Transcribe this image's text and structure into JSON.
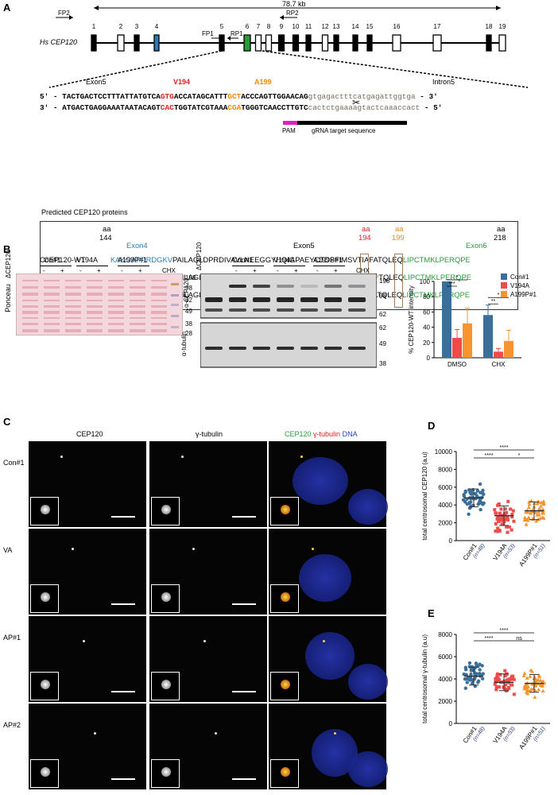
{
  "panels": {
    "A": "A",
    "B": "B",
    "C": "C",
    "D": "D",
    "E": "E"
  },
  "genome": {
    "length": "78.7 kb",
    "gene": "Hs CEP120",
    "exons": [
      "1",
      "2",
      "3",
      "4",
      "5",
      "6",
      "7",
      "8",
      "9",
      "10",
      "11",
      "12",
      "13",
      "14",
      "15",
      "16",
      "17",
      "18",
      "19"
    ],
    "primers": {
      "fp2": "FP2",
      "rp2": "RP2",
      "fp1": "FP1",
      "rp1": "RP1"
    }
  },
  "sequence": {
    "exon5": "Exon5",
    "intron5": "Intron5",
    "v194": "V194",
    "a199": "A199",
    "top_prefix": "5' - ",
    "top_a": "TACTGACTCCTTTATTATGTCA",
    "top_v": "GTG",
    "top_b": "ACCATAGCATTT",
    "top_a199": "GCT",
    "top_c": "ACCCAGTTGGAACAG",
    "top_intron": "gtgagactttcatgagattggtga",
    "top_suffix": " - 3'",
    "bot_prefix": "3' - ",
    "bot_a": "ATGACTGAGGAAATAATACAGT",
    "bot_v": "CAC",
    "bot_b": "TGGTATCGTAAA",
    "bot_a199": "CGA",
    "bot_c": "TGGGTCAACCTTGTC",
    "bot_intron": "cactctgaaaagtactcaaaccact",
    "bot_suffix": " - 5'",
    "pam": "PAM",
    "grna": "gRNA target sequence"
  },
  "proteins": {
    "heading": "Predicted CEP120 proteins",
    "aa": "aa",
    "aa144": "144",
    "aa194": "194",
    "aa199": "199",
    "aa218": "218",
    "exon4": "Exon4",
    "exon5": "Exon5",
    "exon6": "Exon6",
    "rows": [
      {
        "name": "CEP120-WT",
        "e4": "KAKGAPPRDGKV",
        "m1": "PAILAGLDPRDIVAVLNEEGGYHQIGPAEYCTDSFIMS",
        "v": "V",
        "m2": "TIAF",
        "a": "A",
        "m3": "TQLEQ",
        "e6": "LIPCTMKLPERQPE"
      },
      {
        "name": "CEP120-A199P",
        "e4": "KAKGAPPRDGKV",
        "m1": "PAILAGLDPRDIVAVLNEEGGYHQIGPAEYCTDSFIMS",
        "v": "V",
        "m2": "TIAF",
        "a": "P",
        "m3": "TQLEQ",
        "e6": "LIPCTMKLPERQPE"
      },
      {
        "name": "CEP120-V194A",
        "e4": "KAKGAPPRDGKV",
        "m1": "PAILAGLDPRDIVAVLNEEGGYHQIGPAEYCTDSFIMS",
        "v": "A",
        "m2": "TIAF",
        "a": "A",
        "m3": "TQLEQ",
        "e6": "LIPCTMKLPERQPE"
      }
    ]
  },
  "blots": {
    "ponceau_label": "Ponceau",
    "dcep": "ΔCEP120",
    "groups": [
      "Con#1",
      "V194A",
      "A199P#1"
    ],
    "minus": "-",
    "plus": "+",
    "chx": "CHX",
    "ponceau_mw": [
      "198",
      "98",
      "62",
      "49",
      "38",
      "28"
    ],
    "cep_mw": [
      "198",
      "98",
      "62"
    ],
    "tub_mw": [
      "62",
      "49",
      "38"
    ],
    "ab_cep": "α-CEP120",
    "ab_tub": "α-tubulin"
  },
  "chart_data": [
    {
      "type": "bar",
      "ylabel": "% CEP120-WT intensity",
      "ylim": [
        0,
        100
      ],
      "yticks": [
        0,
        20,
        40,
        60,
        80,
        100
      ],
      "categories": [
        "DMSO",
        "CHX"
      ],
      "series": [
        {
          "name": "Con#1",
          "color": "#3b6f99",
          "values": [
            100,
            56
          ],
          "err": [
            0,
            13
          ]
        },
        {
          "name": "V194A",
          "color": "#f04b4b",
          "values": [
            26,
            8
          ],
          "err": [
            11,
            4
          ]
        },
        {
          "name": "A199P#1",
          "color": "#f7942f",
          "values": [
            45,
            22
          ],
          "err": [
            20,
            14
          ]
        }
      ],
      "sig": [
        "***",
        "*",
        "**",
        "*"
      ],
      "legend": "top-right"
    },
    {
      "type": "scatter",
      "ylabel": "total centrosomal CEP120 (a.u)",
      "ylim": [
        0,
        10000
      ],
      "yticks": [
        "0",
        "2000",
        "4000",
        "6000",
        "8000",
        "10000"
      ],
      "categories": [
        "Con#1",
        "V194A",
        "A199P#1"
      ],
      "n": [
        "(n=48)",
        "(n=53)",
        "(n=51)"
      ],
      "means": [
        4800,
        2800,
        3350
      ],
      "sd": [
        1000,
        1100,
        1000
      ],
      "colors": [
        "#3b6f99",
        "#f04b4b",
        "#f7942f"
      ],
      "markers": [
        "circle",
        "square",
        "triangle"
      ],
      "sig": [
        "****",
        "****",
        "*"
      ]
    },
    {
      "type": "scatter",
      "ylabel": "total centrosomal γ-tubulin (a.u)",
      "ylim": [
        0,
        8000
      ],
      "yticks": [
        "0",
        "2000",
        "4000",
        "6000",
        "8000"
      ],
      "categories": [
        "Con#1",
        "V194A",
        "A199P#1"
      ],
      "n": [
        "(n=48)",
        "(n=53)",
        "(n=51)"
      ],
      "means": [
        4250,
        3700,
        3600
      ],
      "sd": [
        800,
        750,
        800
      ],
      "colors": [
        "#3b6f99",
        "#f04b4b",
        "#f7942f"
      ],
      "markers": [
        "circle",
        "square",
        "triangle"
      ],
      "sig": [
        "****",
        "****",
        "ns"
      ]
    }
  ],
  "micro": {
    "col_cep": "CEP120",
    "col_tub": "γ-tubulin",
    "merge_cep": "CEP120",
    "merge_tub": "γ-tubulin",
    "merge_dna": "DNA",
    "rows": [
      "Con#1",
      "VA",
      "AP#1",
      "AP#2"
    ]
  }
}
